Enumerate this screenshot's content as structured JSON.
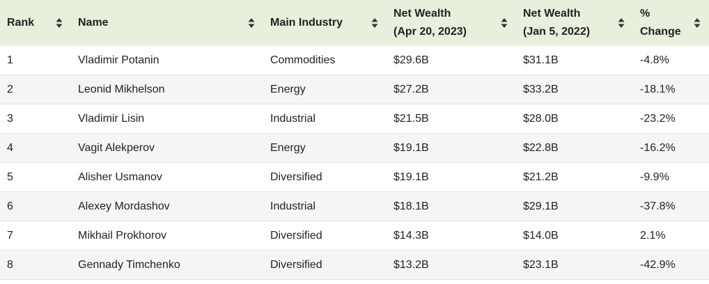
{
  "table": {
    "columns": [
      {
        "id": "rank",
        "lines": [
          "Rank"
        ]
      },
      {
        "id": "name",
        "lines": [
          "Name"
        ]
      },
      {
        "id": "industry",
        "lines": [
          "Main Industry"
        ]
      },
      {
        "id": "wealth_2023",
        "lines": [
          "Net Wealth",
          "(Apr 20, 2023)"
        ]
      },
      {
        "id": "wealth_2022",
        "lines": [
          "Net Wealth",
          "(Jan 5, 2022)"
        ]
      },
      {
        "id": "change",
        "lines": [
          "% Change"
        ]
      }
    ],
    "rows": [
      {
        "rank": "1",
        "name": "Vladimir Potanin",
        "industry": "Commodities",
        "wealth_2023": "$29.6B",
        "wealth_2022": "$31.1B",
        "change": "-4.8%"
      },
      {
        "rank": "2",
        "name": "Leonid Mikhelson",
        "industry": "Energy",
        "wealth_2023": "$27.2B",
        "wealth_2022": "$33.2B",
        "change": "-18.1%"
      },
      {
        "rank": "3",
        "name": "Vladimir Lisin",
        "industry": "Industrial",
        "wealth_2023": "$21.5B",
        "wealth_2022": "$28.0B",
        "change": "-23.2%"
      },
      {
        "rank": "4",
        "name": "Vagit Alekperov",
        "industry": "Energy",
        "wealth_2023": "$19.1B",
        "wealth_2022": "$22.8B",
        "change": "-16.2%"
      },
      {
        "rank": "5",
        "name": "Alisher Usmanov",
        "industry": "Diversified",
        "wealth_2023": "$19.1B",
        "wealth_2022": "$21.2B",
        "change": "-9.9%"
      },
      {
        "rank": "6",
        "name": "Alexey Mordashov",
        "industry": "Industrial",
        "wealth_2023": "$18.1B",
        "wealth_2022": "$29.1B",
        "change": "-37.8%"
      },
      {
        "rank": "7",
        "name": "Mikhail Prokhorov",
        "industry": "Diversified",
        "wealth_2023": "$14.3B",
        "wealth_2022": "$14.0B",
        "change": "2.1%"
      },
      {
        "rank": "8",
        "name": "Gennady Timchenko",
        "industry": "Diversified",
        "wealth_2023": "$13.2B",
        "wealth_2022": "$23.1B",
        "change": "-42.9%"
      }
    ]
  },
  "icons": {
    "sort": "sort-up-down-icon"
  },
  "colors": {
    "header_bg": "#e6f0dc",
    "zebra_bg": "#f5f5f5",
    "text": "#222222"
  }
}
